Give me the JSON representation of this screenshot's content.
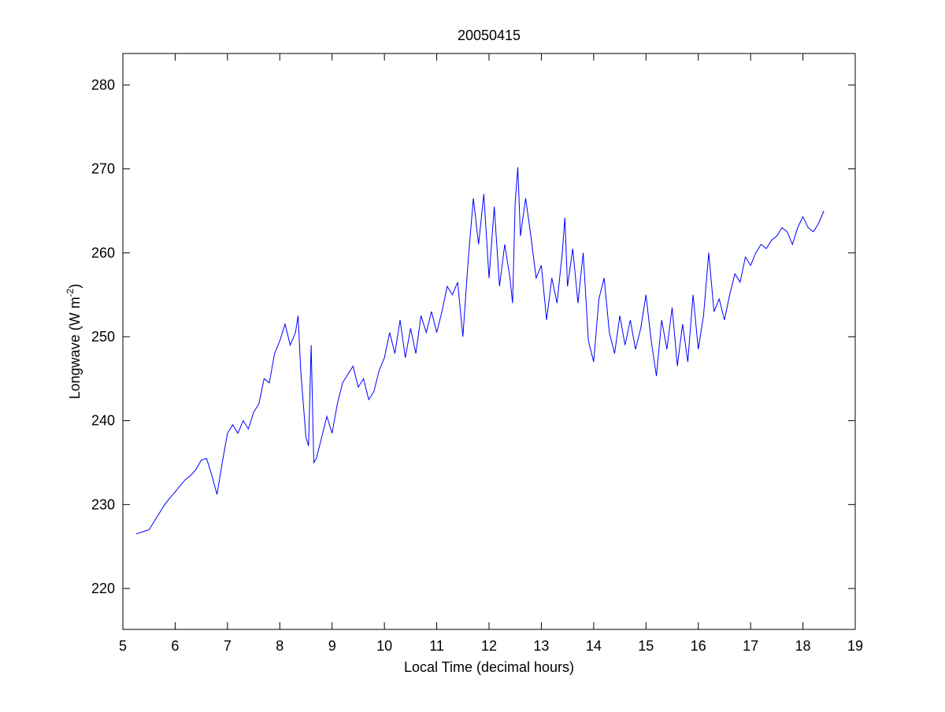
{
  "chart_data": {
    "type": "line",
    "title": "20050415",
    "xlabel": "Local Time (decimal hours)",
    "ylabel": {
      "text": "Longwave (W m",
      "superscript": "-2",
      "suffix": ")"
    },
    "color": "#0000ff",
    "x": [
      5.25,
      5.4,
      5.5,
      5.6,
      5.7,
      5.8,
      5.9,
      6.0,
      6.1,
      6.2,
      6.3,
      6.4,
      6.5,
      6.6,
      6.7,
      6.8,
      6.9,
      7.0,
      7.1,
      7.2,
      7.3,
      7.4,
      7.5,
      7.6,
      7.7,
      7.8,
      7.9,
      8.0,
      8.1,
      8.2,
      8.3,
      8.35,
      8.4,
      8.5,
      8.55,
      8.6,
      8.65,
      8.7,
      8.8,
      8.9,
      9.0,
      9.1,
      9.2,
      9.3,
      9.4,
      9.5,
      9.6,
      9.7,
      9.8,
      9.9,
      10.0,
      10.1,
      10.2,
      10.3,
      10.4,
      10.5,
      10.6,
      10.7,
      10.8,
      10.9,
      11.0,
      11.1,
      11.2,
      11.3,
      11.4,
      11.5,
      11.6,
      11.7,
      11.8,
      11.9,
      12.0,
      12.1,
      12.2,
      12.3,
      12.4,
      12.45,
      12.5,
      12.55,
      12.6,
      12.7,
      12.8,
      12.9,
      13.0,
      13.1,
      13.2,
      13.3,
      13.4,
      13.45,
      13.5,
      13.6,
      13.7,
      13.8,
      13.9,
      14.0,
      14.1,
      14.2,
      14.3,
      14.4,
      14.5,
      14.6,
      14.7,
      14.8,
      14.9,
      15.0,
      15.1,
      15.2,
      15.3,
      15.4,
      15.5,
      15.6,
      15.7,
      15.8,
      15.9,
      16.0,
      16.1,
      16.2,
      16.3,
      16.4,
      16.5,
      16.6,
      16.7,
      16.8,
      16.9,
      17.0,
      17.1,
      17.2,
      17.3,
      17.4,
      17.5,
      17.6,
      17.7,
      17.8,
      17.9,
      18.0,
      18.1,
      18.2,
      18.3,
      18.4
    ],
    "values": [
      226.5,
      226.8,
      227,
      228,
      229,
      230,
      230.8,
      231.5,
      232.3,
      233,
      233.5,
      234.2,
      235.3,
      235.5,
      233.5,
      231.2,
      235,
      238.5,
      239.5,
      238.5,
      240,
      239,
      241,
      242,
      245,
      244.5,
      248,
      249.5,
      251.5,
      249,
      250.5,
      252.5,
      246,
      238,
      237,
      249,
      235,
      235.5,
      238,
      240.5,
      238.5,
      242,
      244.5,
      245.5,
      246.5,
      244,
      245,
      242.5,
      243.5,
      246,
      247.5,
      250.5,
      248,
      252,
      247.5,
      251,
      248,
      252.5,
      250.5,
      253,
      250.5,
      253,
      256,
      255,
      256.5,
      250,
      259,
      266.5,
      261,
      267,
      257,
      265.5,
      256,
      261,
      257,
      254,
      266,
      270.2,
      262,
      266.5,
      262,
      257,
      258.5,
      252,
      257,
      254,
      260,
      264.2,
      256,
      260.5,
      254,
      260,
      249.5,
      247,
      254.5,
      257,
      250.5,
      248,
      252.5,
      249,
      252,
      248.5,
      251,
      255,
      249.5,
      245.3,
      252,
      248.5,
      253.5,
      246.5,
      251.5,
      247,
      255,
      248.5,
      252.5,
      260,
      253,
      254.5,
      252,
      255,
      257.5,
      256.5,
      259.5,
      258.5,
      260,
      261,
      260.5,
      261.5,
      262,
      263,
      262.5,
      261,
      263,
      264.3,
      263,
      262.5,
      263.5,
      265
    ],
    "xlim": [
      5,
      19
    ],
    "xticks": [
      5,
      6,
      7,
      8,
      9,
      10,
      11,
      12,
      13,
      14,
      15,
      16,
      17,
      18,
      19
    ],
    "ylim": [
      215.125,
      283.75
    ],
    "yticks": [
      220,
      230,
      240,
      250,
      260,
      270,
      280
    ]
  }
}
